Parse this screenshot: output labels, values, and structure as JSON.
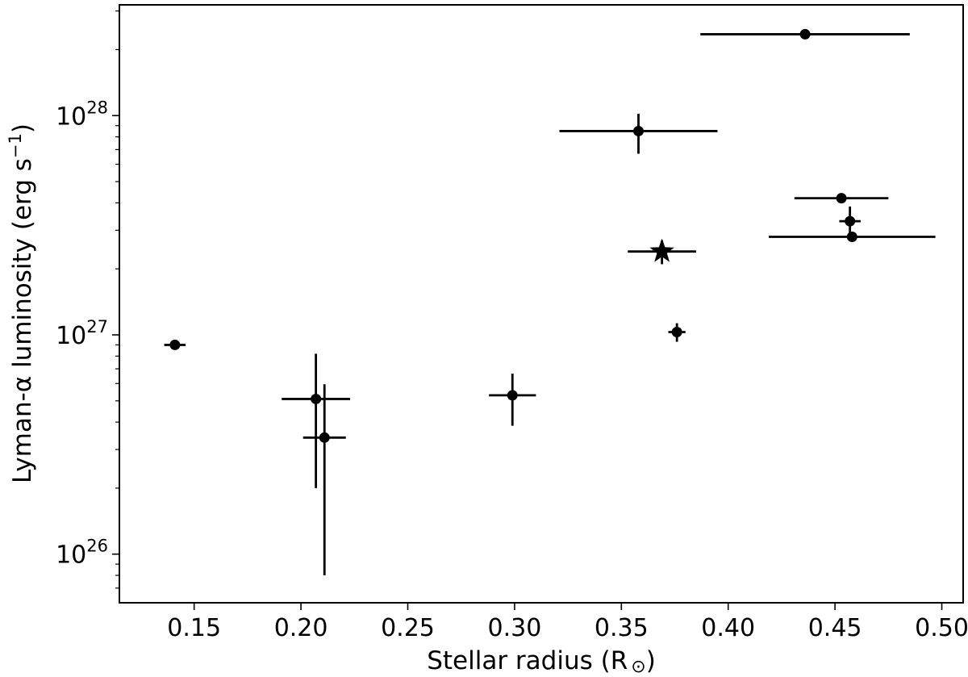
{
  "chart_data": {
    "type": "scatter",
    "xlabel": "Stellar radius (R",
    "xlabel_symbol": "⊙",
    "xlabel_close": ")",
    "ylabel": "Lyman-α luminosity (erg s",
    "ylabel_exp": "−1",
    "ylabel_close": ")",
    "y_scale": "log",
    "xlim": [
      0.115,
      0.51
    ],
    "ylim": [
      6e+25,
      3.2e+28
    ],
    "x_ticks": [
      0.15,
      0.2,
      0.25,
      0.3,
      0.35,
      0.4,
      0.45,
      0.5
    ],
    "x_tick_labels": [
      "0.15",
      "0.20",
      "0.25",
      "0.30",
      "0.35",
      "0.40",
      "0.45",
      "0.50"
    ],
    "y_major_ticks": [
      1e+26,
      1e+27,
      1e+28
    ],
    "y_tick_labels": [
      {
        "base": "10",
        "exp": "26"
      },
      {
        "base": "10",
        "exp": "27"
      },
      {
        "base": "10",
        "exp": "28"
      }
    ],
    "grid": false,
    "legend": false,
    "points": [
      {
        "x": 0.141,
        "y": 9e+26,
        "xerr": [
          0.005,
          0.005
        ],
        "yerr": [
          0,
          0
        ],
        "marker": "circle"
      },
      {
        "x": 0.207,
        "y": 5.1e+26,
        "xerr": [
          0.016,
          0.016
        ],
        "yerr": [
          3.1e+26,
          3.1e+26
        ],
        "marker": "circle"
      },
      {
        "x": 0.211,
        "y": 3.4e+26,
        "xerr": [
          0.01,
          0.01
        ],
        "yerr": [
          2.6e+26,
          2.55e+26
        ],
        "marker": "circle"
      },
      {
        "x": 0.299,
        "y": 5.3e+26,
        "xerr": [
          0.011,
          0.011
        ],
        "yerr": [
          1.45e+26,
          1.35e+26
        ],
        "marker": "circle"
      },
      {
        "x": 0.358,
        "y": 8.5e+27,
        "xerr": [
          0.037,
          0.037
        ],
        "yerr": [
          1.8e+27,
          1.7e+27
        ],
        "marker": "circle"
      },
      {
        "x": 0.369,
        "y": 2.4e+27,
        "xerr": [
          0.016,
          0.016
        ],
        "yerr": [
          3e+26,
          3e+26
        ],
        "marker": "star"
      },
      {
        "x": 0.376,
        "y": 1.03e+27,
        "xerr": [
          0.004,
          0.004
        ],
        "yerr": [
          1e+26,
          1e+26
        ],
        "marker": "circle"
      },
      {
        "x": 0.436,
        "y": 2.35e+28,
        "xerr": [
          0.049,
          0.049
        ],
        "yerr": [
          0,
          0
        ],
        "marker": "circle"
      },
      {
        "x": 0.453,
        "y": 4.2e+27,
        "xerr": [
          0.022,
          0.022
        ],
        "yerr": [
          0,
          0
        ],
        "marker": "circle"
      },
      {
        "x": 0.457,
        "y": 3.3e+27,
        "xerr": [
          0.005,
          0.005
        ],
        "yerr": [
          5.5e+26,
          5.5e+26
        ],
        "marker": "circle"
      },
      {
        "x": 0.458,
        "y": 2.8e+27,
        "xerr": [
          0.039,
          0.039
        ],
        "yerr": [
          0,
          0
        ],
        "marker": "circle"
      }
    ]
  }
}
